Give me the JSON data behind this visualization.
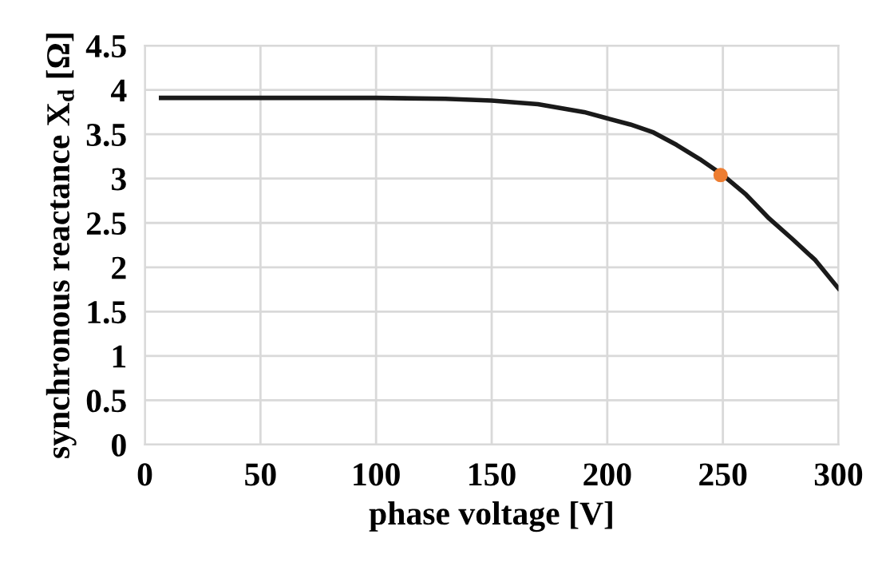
{
  "chart_data": {
    "type": "line",
    "xlabel": "phase voltage [V]",
    "ylabel": "synchronous reactance X$_{d}$ [Ω]",
    "xlim": [
      0,
      300
    ],
    "xticks": [
      0,
      50,
      100,
      150,
      200,
      250,
      300
    ],
    "ylim": [
      0,
      4.5
    ],
    "yticks": [
      0,
      0.5,
      1,
      1.5,
      2,
      2.5,
      3,
      3.5,
      4,
      4.5
    ],
    "grid": true,
    "legend": false,
    "series": [
      {
        "color": "#1a1a1a",
        "marker": "none",
        "x": [
          7,
          50,
          100,
          130,
          150,
          170,
          190,
          200,
          210,
          220,
          230,
          240,
          250,
          260,
          270,
          280,
          290,
          300
        ],
        "values": [
          3.91,
          3.91,
          3.91,
          3.9,
          3.88,
          3.84,
          3.75,
          3.68,
          3.61,
          3.52,
          3.38,
          3.22,
          3.04,
          2.82,
          2.55,
          2.32,
          2.08,
          1.76
        ]
      },
      {
        "type": "scatter",
        "color": "#ed7d31",
        "marker": "circle",
        "x": [
          249
        ],
        "values": [
          3.04
        ]
      }
    ]
  }
}
